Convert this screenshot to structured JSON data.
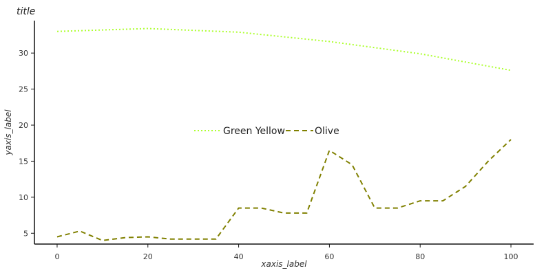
{
  "chart_data": {
    "type": "line",
    "title": "title",
    "xlabel": "xaxis_label",
    "ylabel": "yaxis_label",
    "xlim": [
      -5,
      105
    ],
    "ylim": [
      3.5,
      34.5
    ],
    "xticks": [
      0,
      20,
      40,
      60,
      80,
      100
    ],
    "yticks": [
      5,
      10,
      15,
      20,
      25,
      30
    ],
    "grid": false,
    "legend_position": "center",
    "series": [
      {
        "name": "Green Yellow",
        "color": "#adff2f",
        "dash": "dotted",
        "x": [
          0,
          20,
          40,
          60,
          80,
          100
        ],
        "values": [
          33.0,
          33.4,
          32.9,
          31.6,
          29.9,
          27.6
        ]
      },
      {
        "name": "Olive",
        "color": "#808000",
        "dash": "dashed",
        "x": [
          0,
          5,
          10,
          15,
          20,
          25,
          30,
          35,
          40,
          45,
          50,
          55,
          60,
          65,
          70,
          75,
          80,
          85,
          90,
          95,
          100
        ],
        "values": [
          4.5,
          5.3,
          4.0,
          4.4,
          4.5,
          4.2,
          4.2,
          4.2,
          8.5,
          8.5,
          7.8,
          7.8,
          16.5,
          14.5,
          8.5,
          8.5,
          9.5,
          9.5,
          11.5,
          15.0,
          18.0
        ]
      }
    ]
  }
}
